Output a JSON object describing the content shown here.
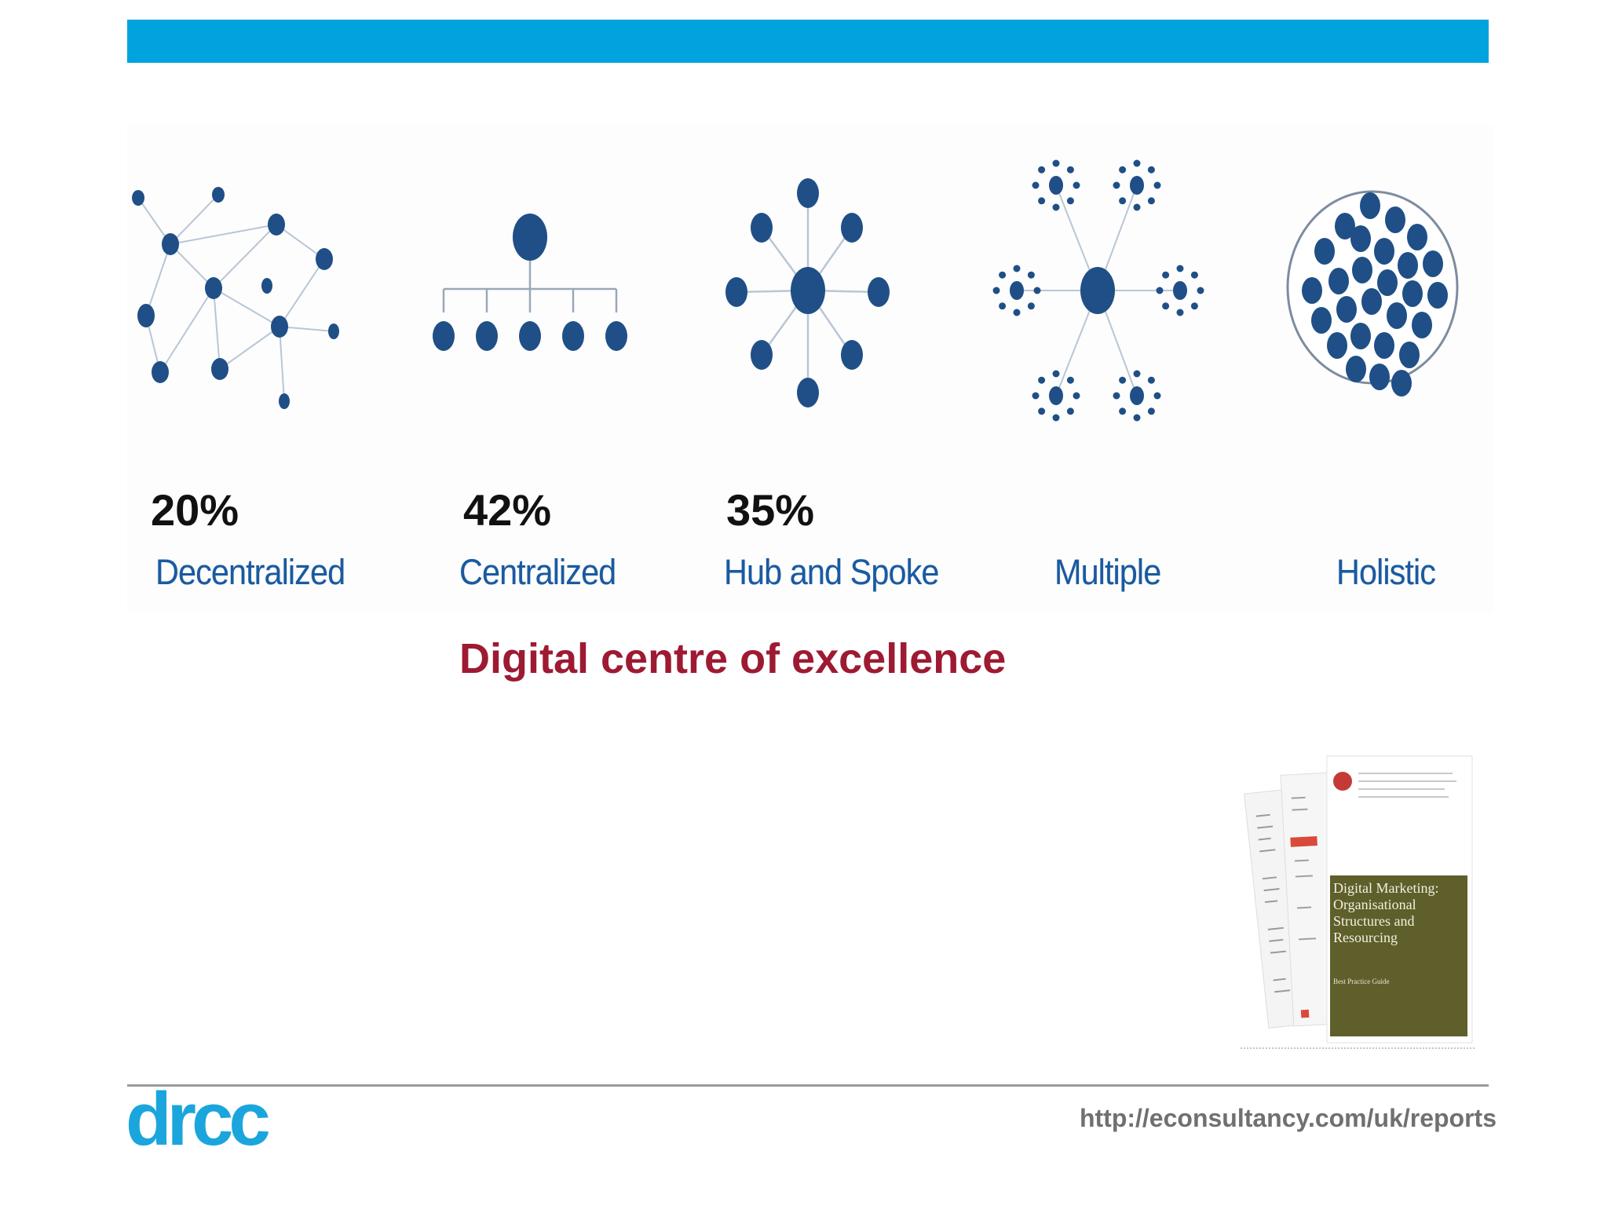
{
  "header": {
    "bar_color": "#00a3dd"
  },
  "models": [
    {
      "key": "decentralized",
      "label": "Decentralized",
      "percent": "20%",
      "icon": "decentralized-network-icon"
    },
    {
      "key": "centralized",
      "label": "Centralized",
      "percent": "42%",
      "icon": "centralized-hierarchy-icon"
    },
    {
      "key": "hub-and-spoke",
      "label": "Hub and Spoke",
      "percent": "35%",
      "icon": "hub-and-spoke-icon"
    },
    {
      "key": "multiple",
      "label": "Multiple",
      "percent": "",
      "icon": "multiple-hubs-icon"
    },
    {
      "key": "holistic",
      "label": "Holistic",
      "percent": "",
      "icon": "holistic-cluster-icon"
    }
  ],
  "title": "Digital centre of excellence",
  "report": {
    "cover_title": "Digital Marketing: Organisational Structures and Resourcing",
    "cover_subtitle": "Best Practice Guide",
    "icon": "report-cover-thumbnail"
  },
  "footer": {
    "logo_text": "drcc",
    "url": "http://econsultancy.com/uk/reports"
  },
  "colors": {
    "node": "#1f4f86",
    "label": "#1a5aa0",
    "title": "#9d1a32",
    "cover_panel": "#5f5f2b"
  }
}
